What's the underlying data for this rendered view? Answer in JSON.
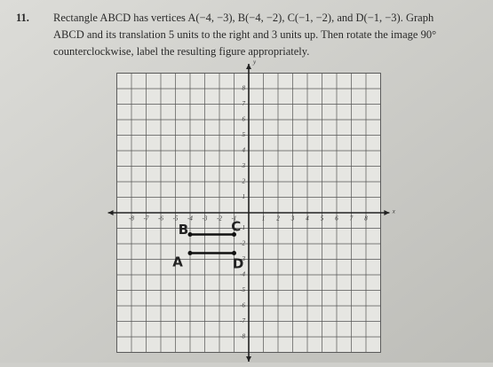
{
  "problem": {
    "number": "11.",
    "lines": [
      "Rectangle ABCD has vertices A(−4, −3), B(−4, −2), C(−1, −2), and D(−1, −3). Graph",
      "ABCD and its translation 5 units to the right and 3 units up. Then rotate the image 90°",
      "counterclockwise, label the resulting figure appropriately."
    ]
  },
  "graph": {
    "x_labels": [
      -8,
      -7,
      -6,
      -5,
      -4,
      -3,
      -2,
      -1,
      1,
      2,
      3,
      4,
      5,
      6,
      7,
      8
    ],
    "y_labels": [
      8,
      7,
      6,
      5,
      4,
      3,
      2,
      1,
      -1,
      -2,
      -3,
      -4,
      -5,
      -6,
      -7,
      -8
    ],
    "x_axis_label": "x",
    "y_axis_label": "y"
  },
  "handwriting": {
    "b": "B",
    "c": "C",
    "a": "A",
    "d": "D"
  }
}
